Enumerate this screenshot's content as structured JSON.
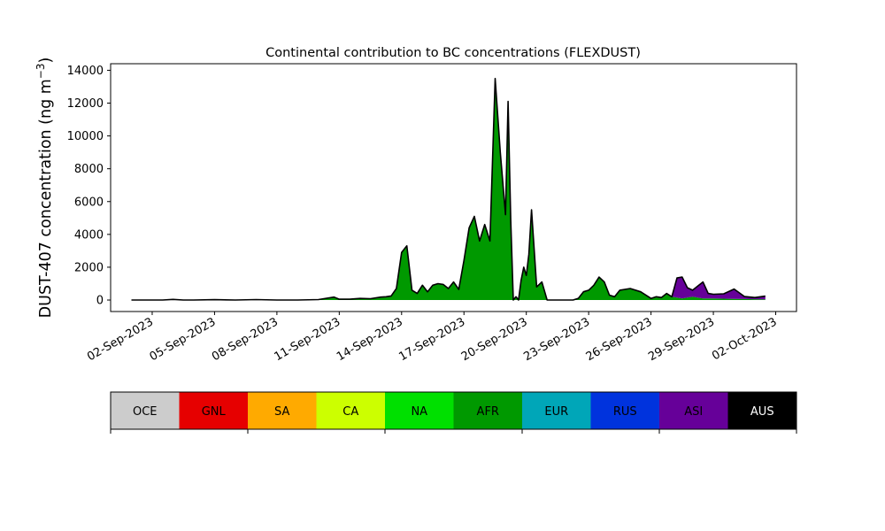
{
  "chart_data": {
    "type": "area",
    "title": "Continental contribution to BC concentrations (FLEXDUST)",
    "xlabel": "",
    "ylabel": "DUST-407 concentration (ng m",
    "ylabel_sup": "−3",
    "ylabel_close": ")",
    "x_start": "2023-08-31",
    "x_end": "2023-10-03",
    "ylim": [
      -700,
      14400
    ],
    "y_ticks": [
      0,
      2000,
      4000,
      6000,
      8000,
      10000,
      12000,
      14000
    ],
    "x_ticks": [
      "02-Sep-2023",
      "05-Sep-2023",
      "08-Sep-2023",
      "11-Sep-2023",
      "14-Sep-2023",
      "17-Sep-2023",
      "20-Sep-2023",
      "23-Sep-2023",
      "26-Sep-2023",
      "29-Sep-2023",
      "02-Oct-2023"
    ],
    "x_tick_dates": [
      "2023-09-02",
      "2023-09-05",
      "2023-09-08",
      "2023-09-11",
      "2023-09-14",
      "2023-09-17",
      "2023-09-20",
      "2023-09-23",
      "2023-09-26",
      "2023-09-29",
      "2023-10-02"
    ],
    "grid": false,
    "times": [
      "2023-09-01",
      "2023-09-02",
      "2023-09-02 12:00",
      "2023-09-03",
      "2023-09-03 12:00",
      "2023-09-04",
      "2023-09-05",
      "2023-09-06",
      "2023-09-07",
      "2023-09-08",
      "2023-09-09",
      "2023-09-10",
      "2023-09-10 18:00",
      "2023-09-11",
      "2023-09-11 12:00",
      "2023-09-12",
      "2023-09-12 12:00",
      "2023-09-13",
      "2023-09-13 06:00",
      "2023-09-13 12:00",
      "2023-09-13 18:00",
      "2023-09-14",
      "2023-09-14 06:00",
      "2023-09-14 12:00",
      "2023-09-14 18:00",
      "2023-09-15",
      "2023-09-15 06:00",
      "2023-09-15 12:00",
      "2023-09-15 18:00",
      "2023-09-16",
      "2023-09-16 06:00",
      "2023-09-16 12:00",
      "2023-09-16 18:00",
      "2023-09-17",
      "2023-09-17 06:00",
      "2023-09-17 12:00",
      "2023-09-17 18:00",
      "2023-09-18",
      "2023-09-18 06:00",
      "2023-09-18 12:00",
      "2023-09-18 18:00",
      "2023-09-19",
      "2023-09-19 03:00",
      "2023-09-19 06:00",
      "2023-09-19 09:00",
      "2023-09-19 12:00",
      "2023-09-19 15:00",
      "2023-09-19 18:00",
      "2023-09-19 21:00",
      "2023-09-20",
      "2023-09-20 03:00",
      "2023-09-20 06:00",
      "2023-09-20 12:00",
      "2023-09-20 18:00",
      "2023-09-21",
      "2023-09-21 12:00",
      "2023-09-22",
      "2023-09-22 06:00",
      "2023-09-22 12:00",
      "2023-09-22 18:00",
      "2023-09-23",
      "2023-09-23 06:00",
      "2023-09-23 12:00",
      "2023-09-23 18:00",
      "2023-09-24",
      "2023-09-24 06:00",
      "2023-09-24 12:00",
      "2023-09-25",
      "2023-09-25 12:00",
      "2023-09-26",
      "2023-09-26 06:00",
      "2023-09-26 12:00",
      "2023-09-26 18:00",
      "2023-09-27",
      "2023-09-27 06:00",
      "2023-09-27 12:00",
      "2023-09-27 18:00",
      "2023-09-28",
      "2023-09-28 06:00",
      "2023-09-28 12:00",
      "2023-09-28 18:00",
      "2023-09-29",
      "2023-09-29 12:00",
      "2023-09-30",
      "2023-09-30 12:00",
      "2023-10-01",
      "2023-10-01 12:00"
    ],
    "series": [
      {
        "name": "OCE",
        "color": "#cccccc",
        "values": [
          0,
          0,
          0,
          0,
          0,
          0,
          0,
          0,
          0,
          0,
          0,
          0,
          0,
          0,
          0,
          0,
          0,
          0,
          0,
          0,
          0,
          0,
          0,
          0,
          0,
          0,
          0,
          0,
          0,
          0,
          0,
          0,
          0,
          0,
          0,
          0,
          0,
          0,
          0,
          0,
          0,
          0,
          0,
          0,
          0,
          0,
          0,
          0,
          0,
          0,
          0,
          0,
          0,
          0,
          0,
          0,
          0,
          0,
          0,
          0,
          0,
          0,
          0,
          0,
          0,
          0,
          0,
          0,
          0,
          0,
          0,
          0,
          0,
          0,
          0,
          0,
          0,
          0,
          0,
          0,
          0,
          0,
          0,
          0,
          0,
          0,
          0
        ]
      },
      {
        "name": "GNL",
        "color": "#e60000",
        "values": [
          0,
          0,
          0,
          0,
          0,
          0,
          0,
          0,
          0,
          0,
          0,
          0,
          0,
          0,
          0,
          0,
          0,
          0,
          0,
          0,
          0,
          0,
          0,
          0,
          0,
          0,
          0,
          0,
          0,
          0,
          0,
          0,
          0,
          0,
          0,
          0,
          0,
          0,
          0,
          0,
          0,
          0,
          0,
          0,
          0,
          0,
          0,
          0,
          0,
          0,
          0,
          0,
          0,
          0,
          0,
          0,
          0,
          0,
          0,
          0,
          0,
          0,
          0,
          0,
          0,
          0,
          0,
          0,
          0,
          0,
          0,
          0,
          0,
          0,
          0,
          0,
          0,
          0,
          0,
          0,
          0,
          0,
          0,
          0,
          0,
          0,
          0
        ]
      },
      {
        "name": "SA",
        "color": "#ffaa00",
        "values": [
          0,
          0,
          0,
          0,
          0,
          0,
          0,
          0,
          0,
          0,
          0,
          0,
          0,
          0,
          0,
          0,
          0,
          0,
          0,
          0,
          0,
          0,
          0,
          0,
          0,
          0,
          0,
          0,
          0,
          0,
          0,
          0,
          0,
          0,
          0,
          0,
          0,
          0,
          0,
          0,
          0,
          0,
          0,
          0,
          0,
          0,
          0,
          0,
          0,
          0,
          0,
          0,
          0,
          0,
          0,
          0,
          0,
          0,
          0,
          0,
          0,
          0,
          0,
          0,
          0,
          0,
          0,
          0,
          0,
          0,
          0,
          0,
          0,
          0,
          0,
          0,
          0,
          0,
          0,
          0,
          0,
          0,
          0,
          0,
          0,
          0,
          0
        ]
      },
      {
        "name": "CA",
        "color": "#ccff00",
        "values": [
          0,
          0,
          0,
          0,
          0,
          0,
          0,
          0,
          0,
          0,
          0,
          0,
          0,
          0,
          0,
          0,
          0,
          0,
          0,
          0,
          0,
          0,
          0,
          0,
          0,
          0,
          0,
          0,
          0,
          0,
          0,
          0,
          0,
          0,
          0,
          0,
          0,
          0,
          0,
          0,
          0,
          0,
          0,
          0,
          0,
          0,
          0,
          0,
          0,
          0,
          0,
          0,
          0,
          0,
          0,
          0,
          0,
          0,
          0,
          0,
          0,
          0,
          0,
          0,
          0,
          0,
          0,
          0,
          0,
          0,
          0,
          0,
          0,
          0,
          0,
          0,
          0,
          0,
          0,
          0,
          0,
          0,
          0,
          0,
          0,
          0,
          0
        ]
      },
      {
        "name": "NA",
        "color": "#00e000",
        "values": [
          0,
          0,
          0,
          0,
          0,
          0,
          0,
          0,
          0,
          0,
          0,
          0,
          0,
          0,
          0,
          0,
          0,
          0,
          0,
          0,
          0,
          0,
          0,
          0,
          0,
          0,
          0,
          0,
          0,
          0,
          0,
          0,
          0,
          0,
          0,
          0,
          0,
          0,
          0,
          0,
          0,
          0,
          0,
          0,
          0,
          0,
          0,
          0,
          0,
          0,
          0,
          0,
          0,
          0,
          0,
          0,
          0,
          0,
          0,
          0,
          0,
          0,
          0,
          0,
          0,
          0,
          0,
          0,
          0,
          0,
          0,
          0,
          0,
          0,
          0,
          0,
          0,
          0,
          0,
          0,
          0,
          0,
          0,
          0,
          0,
          0,
          0
        ]
      },
      {
        "name": "AFR",
        "color": "#009900",
        "values": [
          0,
          0,
          0,
          40,
          0,
          0,
          20,
          0,
          30,
          0,
          0,
          30,
          180,
          50,
          50,
          100,
          80,
          180,
          200,
          250,
          700,
          2900,
          3300,
          600,
          400,
          900,
          500,
          900,
          1000,
          950,
          700,
          1100,
          650,
          2400,
          4400,
          5100,
          3600,
          4600,
          3600,
          13500,
          9000,
          5200,
          12100,
          4900,
          0,
          200,
          0,
          1200,
          2000,
          1500,
          2800,
          5500,
          800,
          1100,
          0,
          0,
          0,
          0,
          100,
          500,
          600,
          900,
          1400,
          1100,
          300,
          200,
          600,
          700,
          500,
          100,
          200,
          150,
          400,
          200,
          150,
          100,
          150,
          200,
          150,
          100,
          100,
          100,
          80,
          70,
          60,
          50,
          40
        ]
      },
      {
        "name": "EUR",
        "color": "#00a6b8",
        "values": [
          0,
          0,
          0,
          0,
          0,
          0,
          0,
          0,
          0,
          0,
          0,
          0,
          0,
          0,
          0,
          0,
          0,
          0,
          0,
          0,
          0,
          0,
          0,
          0,
          0,
          0,
          0,
          0,
          0,
          0,
          0,
          0,
          0,
          0,
          0,
          0,
          0,
          0,
          0,
          0,
          0,
          0,
          0,
          0,
          0,
          0,
          0,
          0,
          0,
          0,
          0,
          0,
          0,
          0,
          0,
          0,
          0,
          0,
          0,
          0,
          0,
          0,
          0,
          0,
          0,
          0,
          0,
          0,
          0,
          0,
          0,
          0,
          0,
          0,
          0,
          0,
          0,
          0,
          0,
          0,
          0,
          0,
          0,
          0,
          0,
          0,
          0
        ]
      },
      {
        "name": "RUS",
        "color": "#0033dd",
        "values": [
          0,
          0,
          0,
          0,
          0,
          0,
          0,
          0,
          0,
          0,
          0,
          0,
          0,
          0,
          0,
          0,
          0,
          0,
          0,
          0,
          0,
          0,
          0,
          0,
          0,
          0,
          0,
          0,
          0,
          0,
          0,
          0,
          0,
          0,
          0,
          0,
          0,
          0,
          0,
          0,
          0,
          0,
          0,
          0,
          0,
          0,
          0,
          0,
          0,
          0,
          0,
          0,
          0,
          0,
          0,
          0,
          0,
          0,
          0,
          0,
          0,
          0,
          0,
          0,
          0,
          0,
          0,
          0,
          0,
          0,
          0,
          0,
          0,
          0,
          0,
          0,
          0,
          0,
          0,
          0,
          0,
          0,
          0,
          0,
          0,
          0,
          0
        ]
      },
      {
        "name": "ASI",
        "color": "#660099",
        "values": [
          0,
          0,
          0,
          0,
          0,
          0,
          0,
          0,
          0,
          0,
          0,
          0,
          0,
          0,
          0,
          0,
          0,
          0,
          0,
          0,
          0,
          0,
          0,
          0,
          0,
          0,
          0,
          0,
          0,
          0,
          0,
          0,
          0,
          0,
          0,
          0,
          0,
          0,
          0,
          0,
          0,
          0,
          0,
          0,
          0,
          0,
          0,
          0,
          0,
          0,
          0,
          0,
          0,
          0,
          0,
          0,
          0,
          0,
          0,
          0,
          0,
          0,
          0,
          0,
          0,
          0,
          0,
          0,
          0,
          0,
          0,
          0,
          0,
          0,
          1200,
          1300,
          600,
          400,
          700,
          1000,
          300,
          250,
          300,
          600,
          150,
          100,
          200
        ]
      },
      {
        "name": "AUS",
        "color": "#000000",
        "values": [
          0,
          0,
          0,
          0,
          0,
          0,
          0,
          0,
          0,
          0,
          0,
          0,
          0,
          0,
          0,
          0,
          0,
          0,
          0,
          0,
          0,
          0,
          0,
          0,
          0,
          0,
          0,
          0,
          0,
          0,
          0,
          0,
          0,
          0,
          0,
          0,
          0,
          0,
          0,
          0,
          0,
          0,
          0,
          0,
          0,
          0,
          0,
          0,
          0,
          0,
          0,
          0,
          0,
          0,
          0,
          0,
          0,
          0,
          0,
          0,
          0,
          0,
          0,
          0,
          0,
          0,
          0,
          0,
          0,
          0,
          0,
          0,
          0,
          0,
          0,
          0,
          0,
          0,
          0,
          0,
          0,
          0,
          0,
          0,
          0,
          0,
          0
        ]
      }
    ],
    "legend_position": "bottom"
  }
}
